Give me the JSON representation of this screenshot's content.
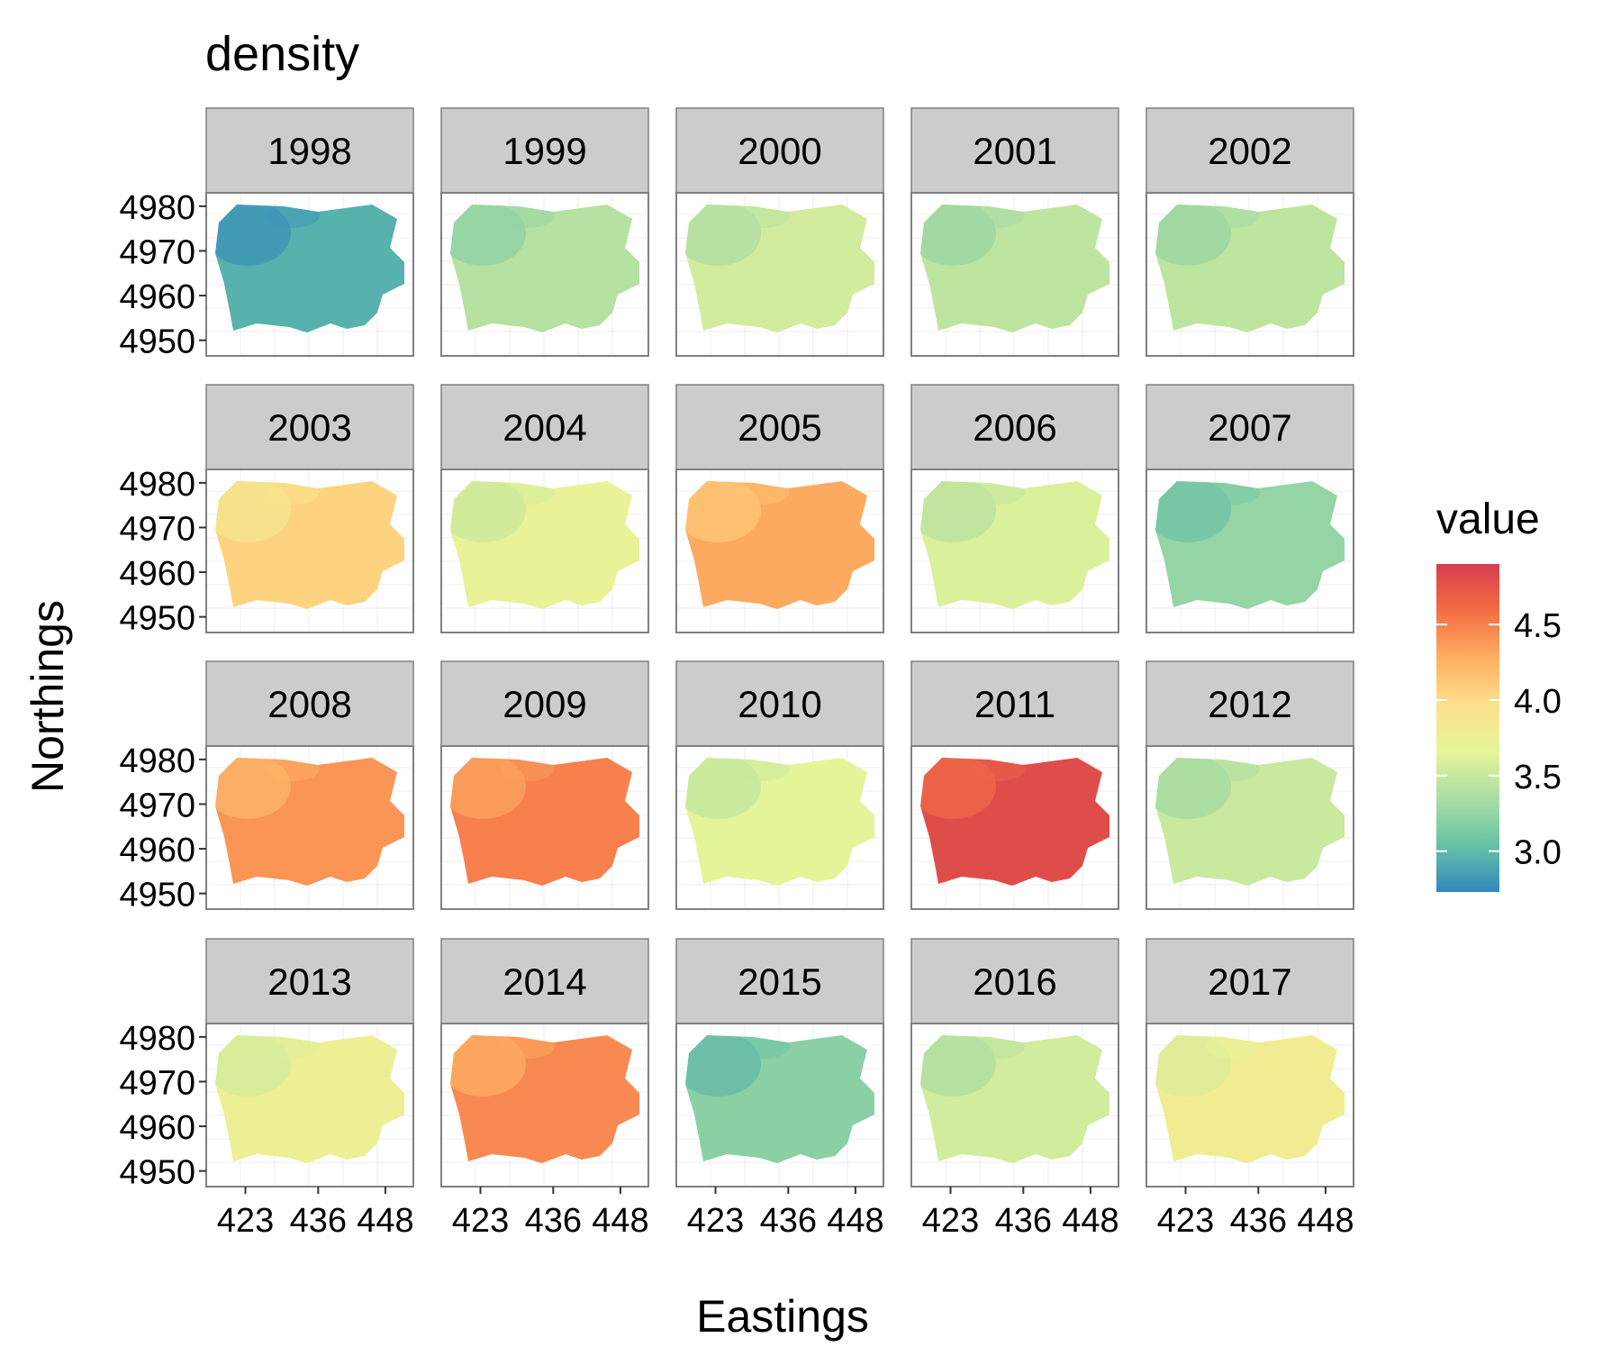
{
  "chart_data": {
    "type": "heatmap",
    "title": "density",
    "xlabel": "Eastings",
    "ylabel": "Northings",
    "facets": [
      "1998",
      "1999",
      "2000",
      "2001",
      "2002",
      "2003",
      "2004",
      "2005",
      "2006",
      "2007",
      "2008",
      "2009",
      "2010",
      "2011",
      "2012",
      "2013",
      "2014",
      "2015",
      "2016",
      "2017"
    ],
    "facet_mean_values": [
      2.95,
      3.4,
      3.55,
      3.45,
      3.45,
      4.05,
      3.7,
      4.3,
      3.6,
      3.25,
      4.4,
      4.5,
      3.65,
      4.8,
      3.5,
      3.75,
      4.45,
      3.2,
      3.55,
      3.8
    ],
    "x_ticks": [
      "423",
      "436",
      "448"
    ],
    "x_tick_values": [
      423,
      436,
      448
    ],
    "y_ticks": [
      "4980",
      "4970",
      "4960",
      "4950"
    ],
    "y_tick_values": [
      4980,
      4970,
      4960,
      4950
    ],
    "xlim": [
      416,
      453
    ],
    "ylim": [
      4946.5,
      4983
    ],
    "legend": {
      "title": "value",
      "position": "right",
      "range": [
        2.73,
        4.9
      ],
      "ticks": [
        "4.5",
        "4.0",
        "3.5",
        "3.0"
      ],
      "tick_values": [
        4.5,
        4.0,
        3.5,
        3.0
      ],
      "colors": [
        "#3288bd",
        "#66c2a5",
        "#abdda4",
        "#e6f598",
        "#fee08b",
        "#fdae61",
        "#f46d43",
        "#d53e4f"
      ]
    },
    "grid": true
  }
}
